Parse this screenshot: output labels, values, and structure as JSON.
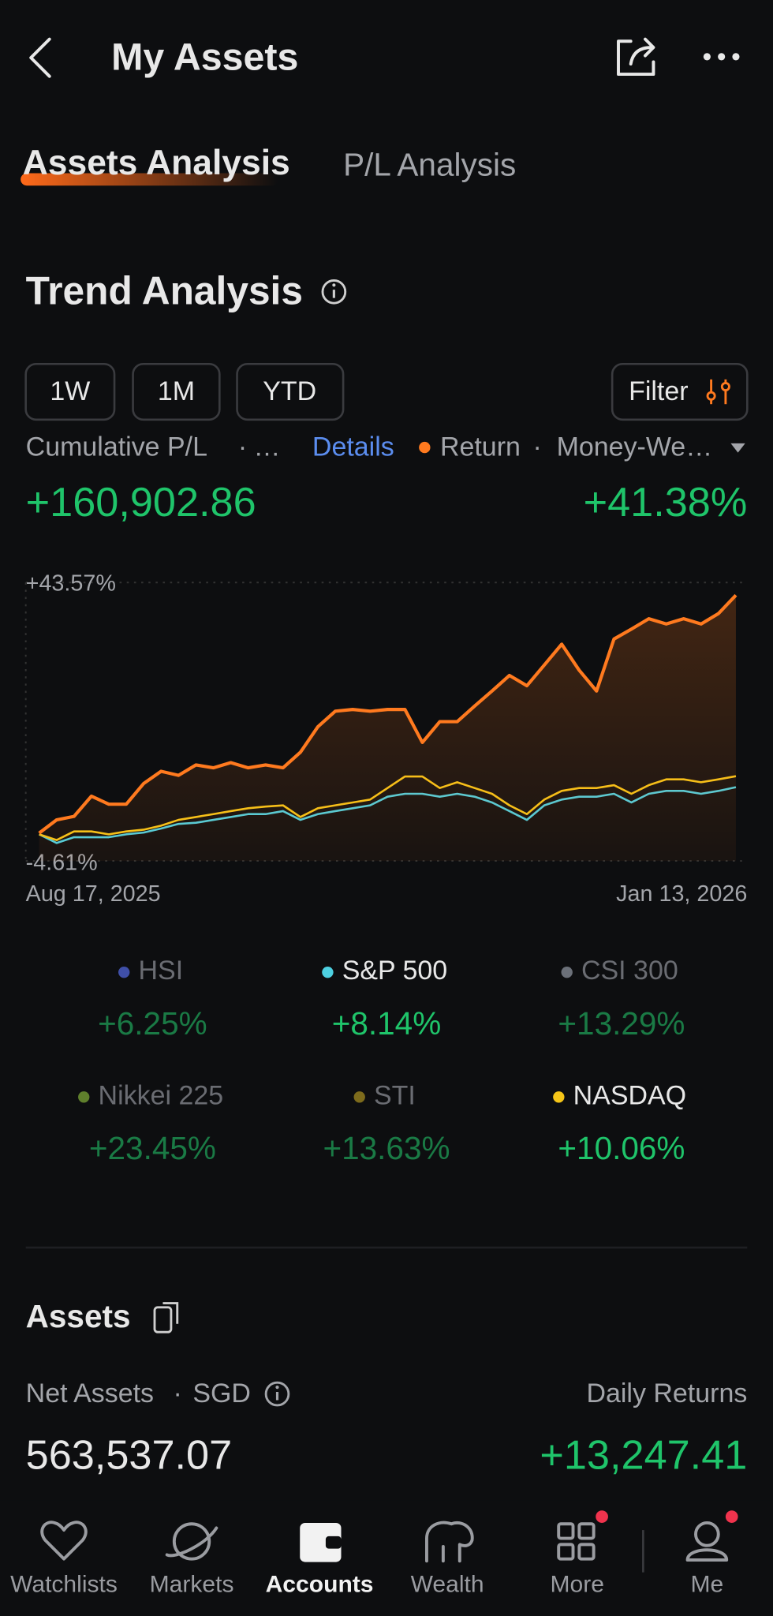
{
  "header": {
    "title": "My Assets"
  },
  "tabs": [
    {
      "label": "Assets Analysis",
      "active": true
    },
    {
      "label": "P/L Analysis",
      "active": false
    }
  ],
  "trend": {
    "title": "Trend Analysis",
    "ranges": [
      "1W",
      "1M",
      "YTD"
    ],
    "filter": "Filter",
    "metric_label": "Cumulative P/L",
    "separator": "·",
    "ellipsis": "…",
    "details": "Details",
    "weighting": "Money-We…",
    "pl_value": "+160,902.86",
    "return_value": "+41.38%"
  },
  "chart_data": {
    "type": "line",
    "categories": [
      "Aug 17, 2025",
      null,
      null,
      null,
      null,
      null,
      null,
      null,
      null,
      null,
      null,
      null,
      null,
      null,
      null,
      null,
      null,
      null,
      null,
      null,
      null,
      null,
      null,
      null,
      null,
      null,
      null,
      null,
      null,
      null,
      null,
      null,
      null,
      null,
      null,
      null,
      null,
      null,
      null,
      null,
      "Jan 13, 2026"
    ],
    "series": [
      {
        "name": "Return",
        "color": "#ff7a1f",
        "values": [
          0.2,
          2.5,
          3.1,
          6.6,
          5.2,
          5.2,
          8.8,
          10.9,
          10.2,
          12.0,
          11.5,
          12.4,
          11.5,
          12.0,
          11.5,
          14.2,
          18.6,
          21.3,
          21.6,
          21.3,
          21.6,
          21.6,
          15.9,
          19.5,
          19.5,
          22.2,
          24.8,
          27.5,
          25.7,
          29.3,
          32.9,
          28.4,
          24.8,
          33.8,
          35.5,
          37.3,
          36.4,
          37.3,
          36.4,
          38.2,
          41.38
        ]
      },
      {
        "color": "#4dd0e1",
        "values": [
          0,
          -1.5,
          -0.5,
          -0.5,
          -0.5,
          0,
          0.3,
          1,
          1.8,
          2,
          2.5,
          3,
          3.5,
          3.5,
          4,
          2.5,
          3.5,
          4,
          4.5,
          5,
          6.5,
          7,
          7,
          6.5,
          7,
          6.5,
          5.5,
          4,
          2.5,
          5,
          6,
          6.5,
          6.5,
          7,
          5.5,
          7,
          7.5,
          7.5,
          7,
          7.5,
          8.14
        ]
      },
      {
        "color": "#f5c518",
        "values": [
          0,
          -1,
          0.5,
          0.5,
          0,
          0.5,
          0.8,
          1.5,
          2.5,
          3,
          3.5,
          4,
          4.5,
          4.8,
          5,
          3,
          4.5,
          5,
          5.5,
          6,
          8,
          10,
          10,
          8,
          9,
          8,
          7,
          5,
          3.5,
          6,
          7.5,
          8,
          8,
          8.5,
          7,
          8.5,
          9.5,
          9.5,
          9,
          9.5,
          10.06
        ]
      }
    ],
    "ylim": [
      -4.61,
      43.57
    ],
    "yticks": [
      {
        "value": -4.61,
        "label": "-4.61%"
      },
      {
        "value": 43.57,
        "label": "+43.57%"
      }
    ],
    "grid": true
  },
  "indices": [
    {
      "name": "HSI",
      "color": "#3f4fa8",
      "change": "+6.25%",
      "active": false
    },
    {
      "name": "S&P 500",
      "color": "#4dd0e1",
      "change": "+8.14%",
      "active": true
    },
    {
      "name": "CSI 300",
      "color": "#6b7079",
      "change": "+13.29%",
      "active": false
    },
    {
      "name": "Nikkei 225",
      "color": "#5f7f2c",
      "change": "+23.45%",
      "active": false
    },
    {
      "name": "STI",
      "color": "#7d6b1c",
      "change": "+13.63%",
      "active": false
    },
    {
      "name": "NASDAQ",
      "color": "#f5c518",
      "change": "+10.06%",
      "active": true
    }
  ],
  "assets": {
    "title": "Assets",
    "net_label": "Net Assets",
    "currency": "SGD",
    "daily_label": "Daily Returns",
    "net_value": "563,537.07",
    "daily_value": "+13,247.41"
  },
  "nav": [
    {
      "label": "Watchlists",
      "active": false,
      "badge": false
    },
    {
      "label": "Markets",
      "active": false,
      "badge": false
    },
    {
      "label": "Accounts",
      "active": true,
      "badge": false
    },
    {
      "label": "Wealth",
      "active": false,
      "badge": false
    },
    {
      "label": "More",
      "active": false,
      "badge": true
    },
    {
      "label": "Me",
      "active": false,
      "badge": true
    }
  ]
}
